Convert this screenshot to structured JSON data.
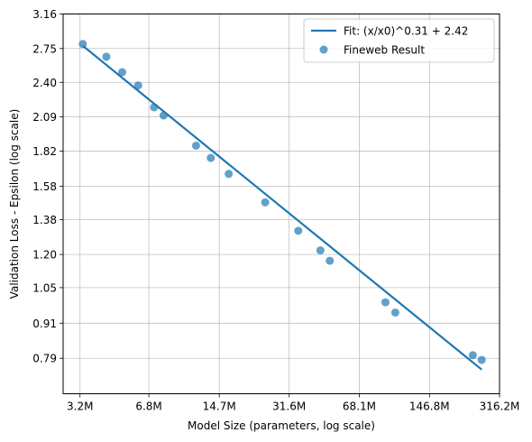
{
  "chart_data": {
    "type": "scatter",
    "xlabel": "Model Size (parameters, log scale)",
    "ylabel": "Validation Loss - Epsilon (log scale)",
    "x_scale": "log",
    "y_scale": "log",
    "grid": true,
    "legend_position": "top-right",
    "x_ticks": [
      {
        "value": 3200000,
        "label": "3.2M"
      },
      {
        "value": 6800000,
        "label": "6.8M"
      },
      {
        "value": 14700000,
        "label": "14.7M"
      },
      {
        "value": 31600000,
        "label": "31.6M"
      },
      {
        "value": 68100000,
        "label": "68.1M"
      },
      {
        "value": 146800000,
        "label": "146.8M"
      },
      {
        "value": 316200000,
        "label": "316.2M"
      }
    ],
    "y_ticks": [
      {
        "value": 0.79,
        "label": "0.79"
      },
      {
        "value": 0.91,
        "label": "0.91"
      },
      {
        "value": 1.05,
        "label": "1.05"
      },
      {
        "value": 1.2,
        "label": "1.20"
      },
      {
        "value": 1.38,
        "label": "1.38"
      },
      {
        "value": 1.58,
        "label": "1.58"
      },
      {
        "value": 1.82,
        "label": "1.82"
      },
      {
        "value": 2.09,
        "label": "2.09"
      },
      {
        "value": 2.4,
        "label": "2.40"
      },
      {
        "value": 2.75,
        "label": "2.75"
      },
      {
        "value": 3.16,
        "label": "3.16"
      }
    ],
    "xlim": [
      2660000,
      316200000
    ],
    "ylim": [
      0.685,
      3.16
    ],
    "series": [
      {
        "name": "Fit: (x/x0)^0.31 + 2.42",
        "kind": "line",
        "color": "#1f77b4",
        "x": [
          3300000,
          260000000
        ],
        "y": [
          2.78,
          0.755
        ]
      },
      {
        "name": "Fineweb Result",
        "kind": "scatter",
        "color": "#1f77b4",
        "x": [
          3300000,
          4270000,
          5080000,
          6050000,
          7200000,
          7990000,
          11400000,
          13400000,
          16300000,
          24300000,
          34900000,
          44500000,
          49300000,
          90700000,
          101000000,
          236000000,
          260000000
        ],
        "y": [
          2.8,
          2.66,
          2.5,
          2.37,
          2.17,
          2.1,
          1.86,
          1.77,
          1.66,
          1.48,
          1.32,
          1.22,
          1.17,
          0.99,
          0.95,
          0.8,
          0.785
        ]
      }
    ]
  }
}
